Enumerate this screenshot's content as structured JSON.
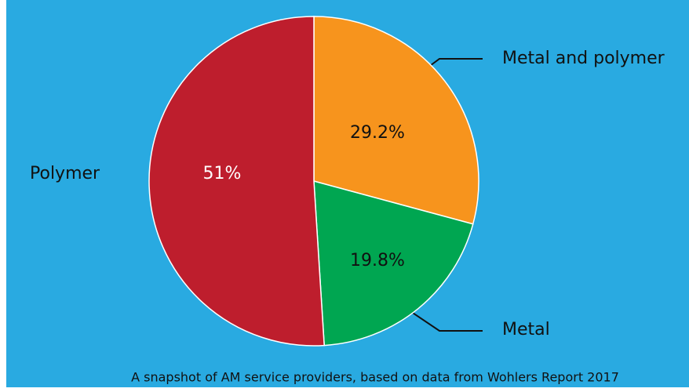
{
  "chart_data": {
    "type": "pie",
    "categories": [
      "Metal and polymer",
      "Metal",
      "Polymer"
    ],
    "values": [
      29.2,
      19.8,
      51
    ],
    "value_labels": [
      "29.2%",
      "19.8%",
      "51%"
    ],
    "colors": [
      "#f7941d",
      "#00a651",
      "#be1e2d"
    ],
    "caption": "A snapshot of AM service providers, based on data from Wohlers Report 2017"
  }
}
